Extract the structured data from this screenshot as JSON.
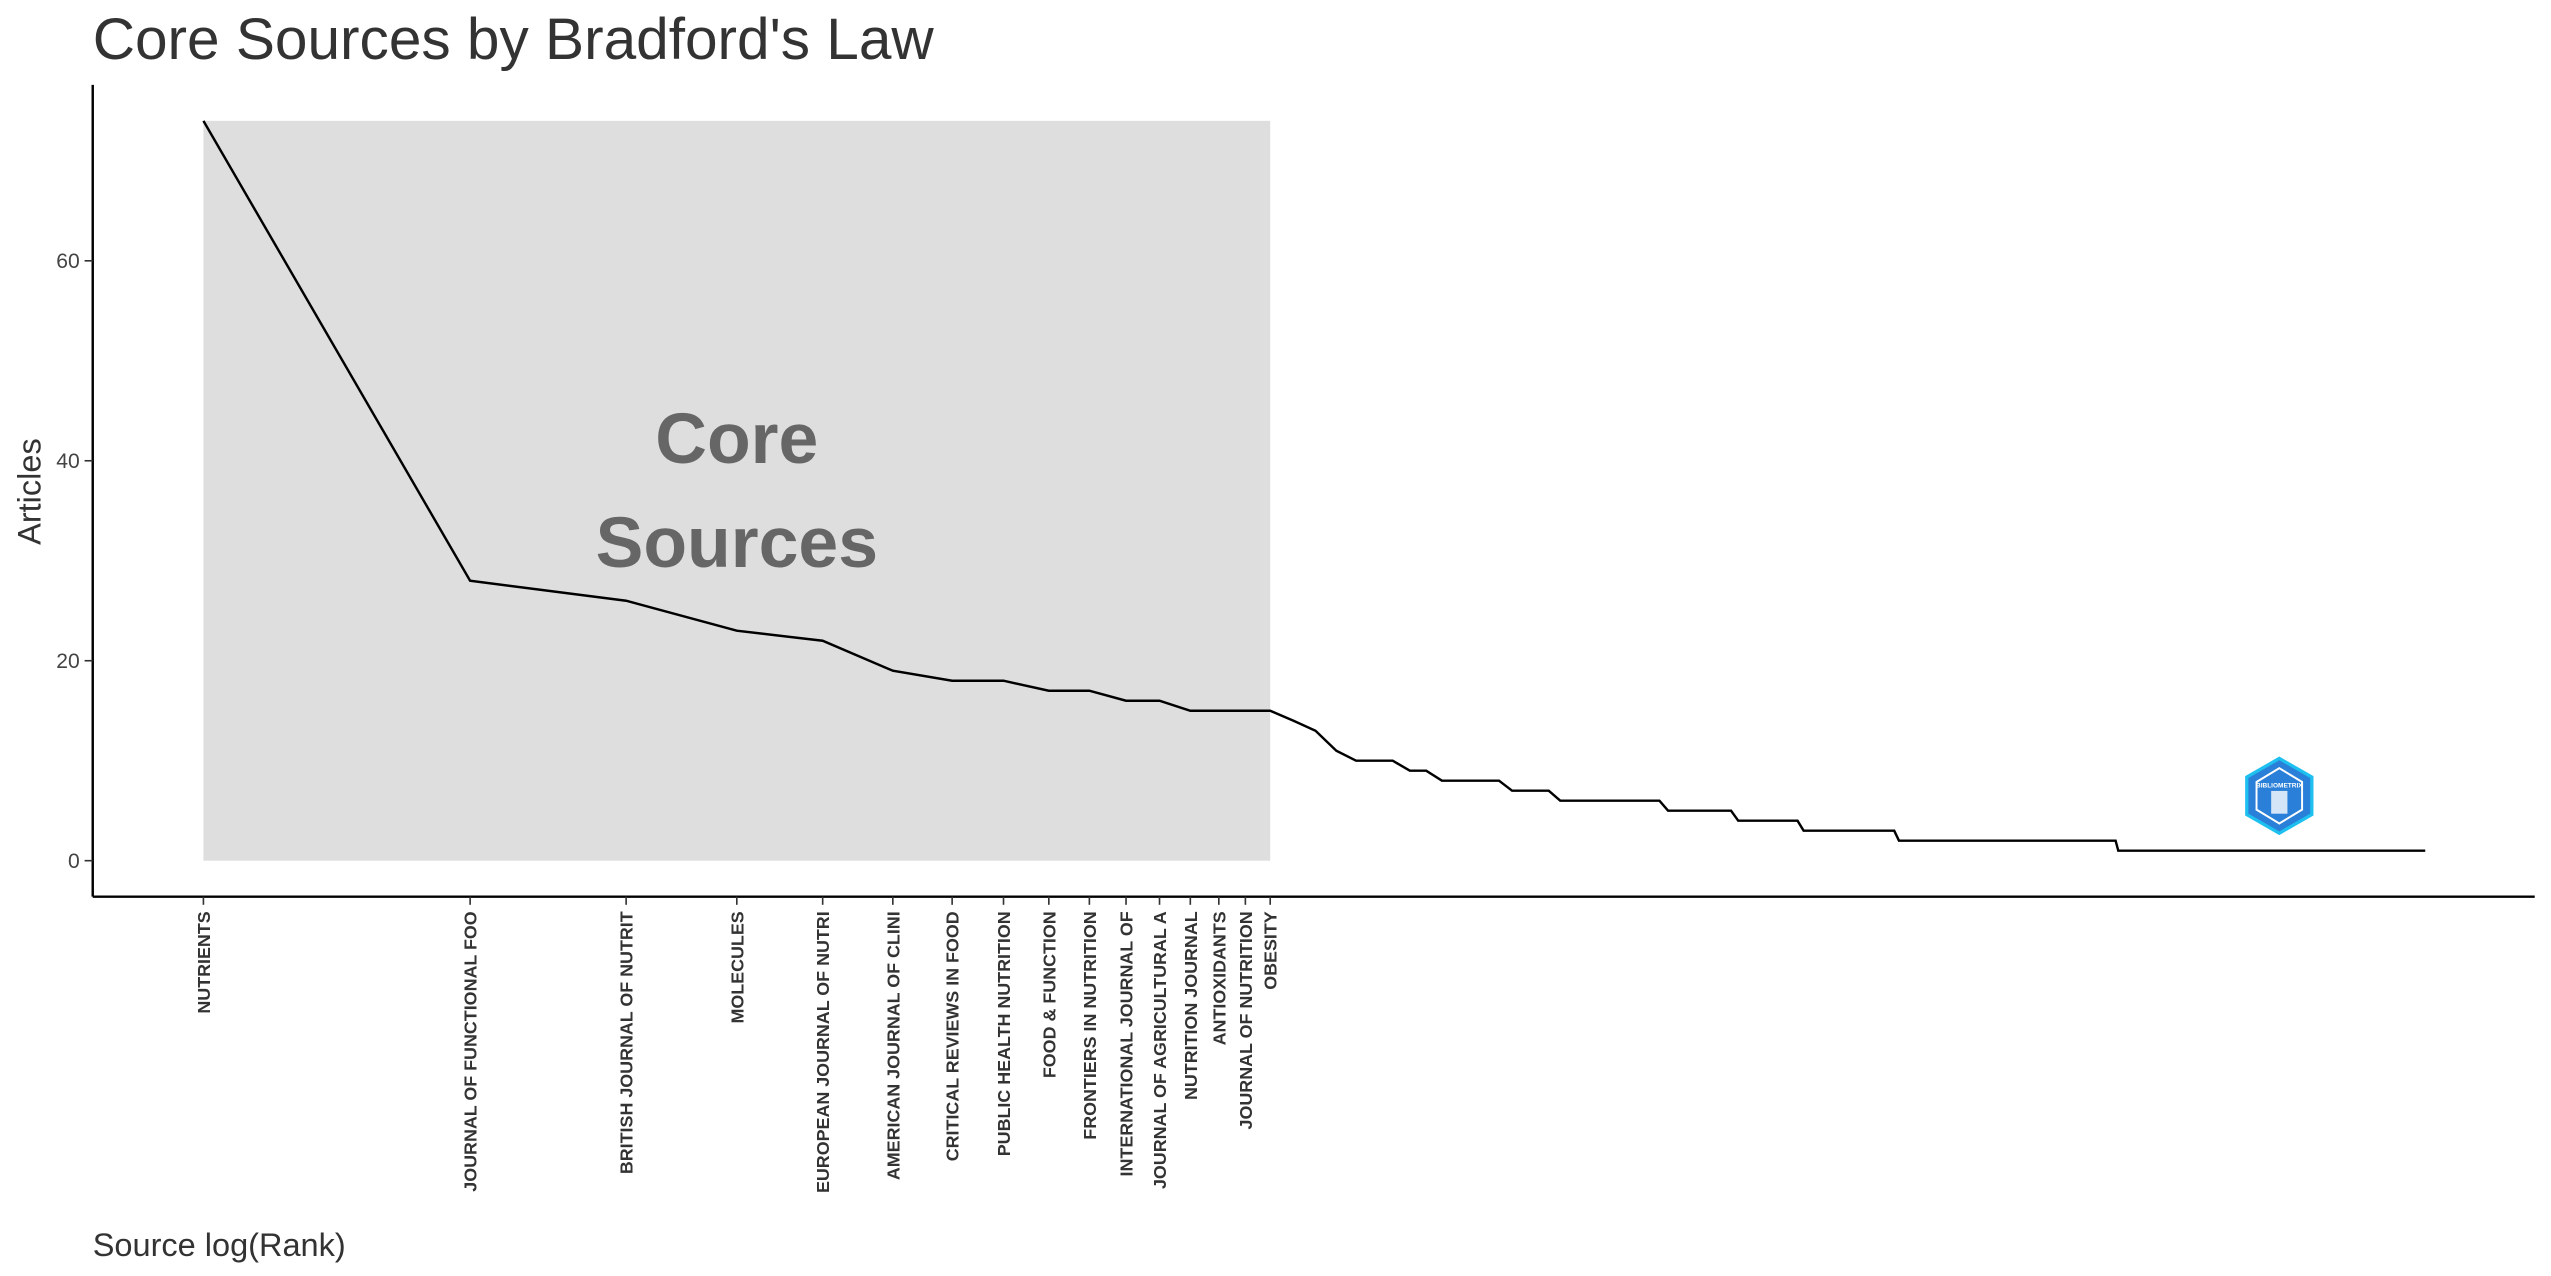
{
  "chart_data": {
    "type": "line",
    "title": "Core Sources by Bradford's Law",
    "x_label": "Source log(Rank)",
    "y_label": "Articles",
    "xscale": "log",
    "xlim": [
      0.75,
      428
    ],
    "ylim": [
      -3.6,
      77.6
    ],
    "yticks": [
      0,
      20,
      40,
      60
    ],
    "xticks": [
      {
        "value": 1,
        "label": "NUTRIENTS"
      },
      {
        "value": 2,
        "label": "JOURNAL OF FUNCTIONAL FOO"
      },
      {
        "value": 3,
        "label": "BRITISH JOURNAL OF NUTRIT"
      },
      {
        "value": 4,
        "label": "MOLECULES"
      },
      {
        "value": 5,
        "label": "EUROPEAN JOURNAL OF NUTRI"
      },
      {
        "value": 6,
        "label": "AMERICAN JOURNAL OF CLINI"
      },
      {
        "value": 7,
        "label": "CRITICAL REVIEWS IN FOOD"
      },
      {
        "value": 8,
        "label": "PUBLIC HEALTH NUTRITION"
      },
      {
        "value": 9,
        "label": "FOOD & FUNCTION"
      },
      {
        "value": 10,
        "label": "FRONTIERS IN NUTRITION"
      },
      {
        "value": 11,
        "label": "INTERNATIONAL JOURNAL OF"
      },
      {
        "value": 12,
        "label": "JOURNAL OF AGRICULTURAL A"
      },
      {
        "value": 13,
        "label": "NUTRITION JOURNAL"
      },
      {
        "value": 14,
        "label": "ANTIOXIDANTS"
      },
      {
        "value": 15,
        "label": "JOURNAL OF NUTRITION"
      },
      {
        "value": 16,
        "label": "OBESITY"
      }
    ],
    "x": [
      1,
      2,
      3,
      4,
      5,
      6,
      7,
      8,
      9,
      10,
      11,
      12,
      13,
      14,
      15,
      16,
      17,
      18,
      19,
      20,
      22,
      23,
      24,
      25,
      29,
      30,
      33,
      34,
      44,
      45,
      53,
      54,
      63,
      64,
      81,
      82,
      144,
      145,
      322
    ],
    "values": [
      74,
      28,
      26,
      23,
      22,
      19,
      18,
      18,
      17,
      17,
      16,
      16,
      15,
      15,
      15,
      15,
      14,
      13,
      11,
      10,
      10,
      9,
      9,
      8,
      8,
      7,
      7,
      6,
      6,
      5,
      5,
      4,
      4,
      3,
      3,
      2,
      2,
      1,
      1
    ],
    "color": "#000000",
    "shade": {
      "xmin": 1,
      "xmax": 16,
      "ymin": 0,
      "ymax": 74,
      "color": "#dedede"
    },
    "annotation": [
      "Core",
      "Sources"
    ],
    "logo_text": "BIBLIOMETRIX"
  }
}
